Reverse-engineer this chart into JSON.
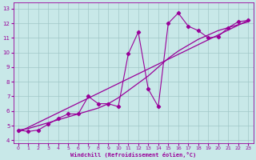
{
  "xlabel": "Windchill (Refroidissement éolien,°C)",
  "bg_color": "#c8e8e8",
  "line_color": "#990099",
  "grid_color": "#a0c8c8",
  "xlim": [
    -0.5,
    23.5
  ],
  "ylim": [
    3.8,
    13.4
  ],
  "xticks": [
    0,
    1,
    2,
    3,
    4,
    5,
    6,
    7,
    8,
    9,
    10,
    11,
    12,
    13,
    14,
    15,
    16,
    17,
    18,
    19,
    20,
    21,
    22,
    23
  ],
  "yticks": [
    4,
    5,
    6,
    7,
    8,
    9,
    10,
    11,
    12,
    13
  ],
  "scatter_x": [
    0,
    1,
    2,
    3,
    4,
    5,
    6,
    7,
    8,
    9,
    10,
    11,
    12,
    13,
    14,
    15,
    16,
    17,
    18,
    19,
    20,
    21,
    22,
    23
  ],
  "scatter_y": [
    4.7,
    4.6,
    4.7,
    5.1,
    5.5,
    5.8,
    5.8,
    7.0,
    6.5,
    6.5,
    6.3,
    9.9,
    11.4,
    7.5,
    6.3,
    12.0,
    12.7,
    11.8,
    11.5,
    11.0,
    11.1,
    11.7,
    12.1,
    12.2
  ],
  "reg_line_x": [
    0,
    23
  ],
  "reg_line_y": [
    4.55,
    12.2
  ],
  "smooth_line_x": [
    0,
    1,
    2,
    3,
    4,
    5,
    6,
    7,
    8,
    9,
    10,
    11,
    12,
    13,
    14,
    15,
    16,
    17,
    18,
    19,
    20,
    21,
    22,
    23
  ],
  "smooth_line_y": [
    4.7,
    4.8,
    5.0,
    5.2,
    5.4,
    5.6,
    5.8,
    6.0,
    6.2,
    6.5,
    6.9,
    7.4,
    7.9,
    8.4,
    9.0,
    9.6,
    10.1,
    10.5,
    10.9,
    11.2,
    11.5,
    11.7,
    11.9,
    12.1
  ]
}
